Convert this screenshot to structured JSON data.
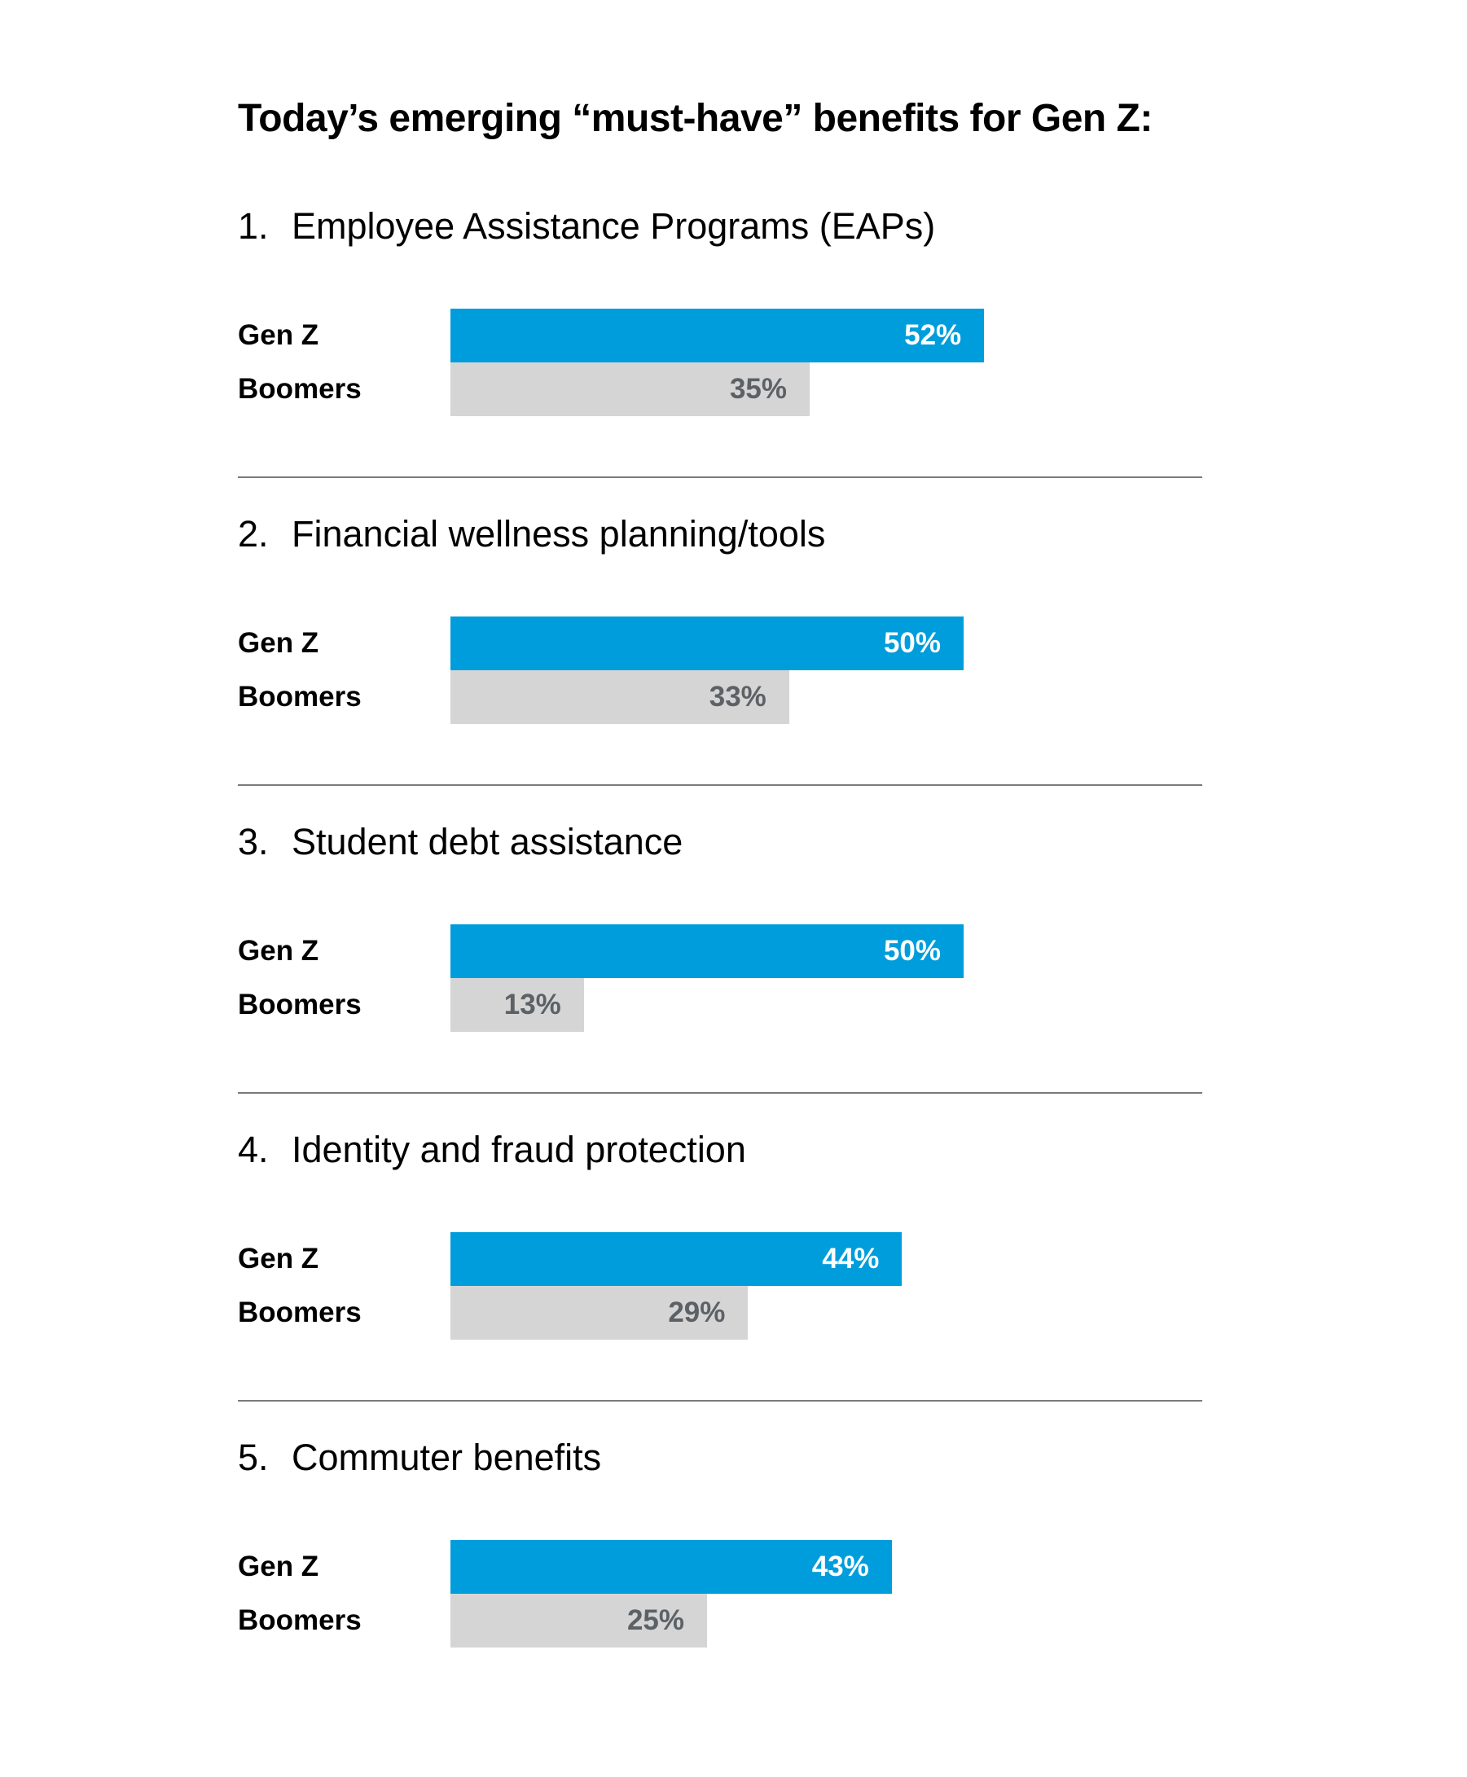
{
  "chart_data": {
    "type": "bar",
    "title": "Today’s emerging “must-have” benefits for Gen Z:",
    "categories": [
      "Employee Assistance Programs (EAPs)",
      "Financial wellness planning/tools",
      "Student debt assistance",
      "Identity and fraud protection",
      "Commuter benefits"
    ],
    "numbers": [
      "1.",
      "2.",
      "3.",
      "4.",
      "5."
    ],
    "series": [
      {
        "name": "Gen Z",
        "values": [
          52,
          50,
          50,
          44,
          43
        ],
        "labels": [
          "52%",
          "50%",
          "50%",
          "44%",
          "43%"
        ],
        "color": "#009ddc",
        "label_color": "#ffffff"
      },
      {
        "name": "Boomers",
        "values": [
          35,
          33,
          13,
          29,
          25
        ],
        "labels": [
          "35%",
          "33%",
          "13%",
          "29%",
          "25%"
        ],
        "color": "#d5d5d5",
        "label_color": "#5c6166"
      }
    ],
    "orientation": "horizontal",
    "xlim": [
      0,
      100
    ],
    "grid": false
  }
}
